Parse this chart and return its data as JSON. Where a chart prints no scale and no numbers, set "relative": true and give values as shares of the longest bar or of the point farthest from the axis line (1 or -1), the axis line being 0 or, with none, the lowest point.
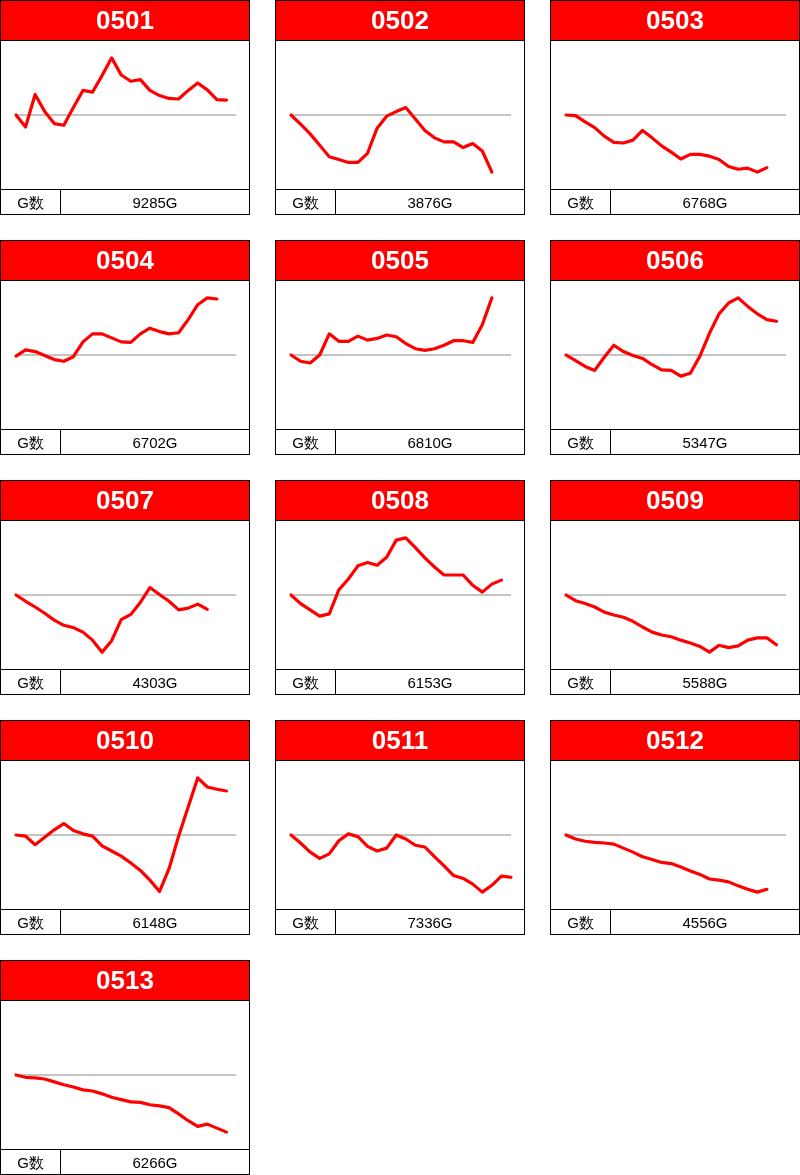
{
  "chart_data": [
    {
      "type": "line",
      "title": "0501",
      "relative": true,
      "categories": [
        null,
        null,
        null,
        null,
        null,
        null,
        null,
        null,
        null,
        null,
        null,
        null,
        null,
        null,
        null,
        null,
        null,
        null,
        null,
        null,
        null,
        null,
        null,
        null
      ],
      "series": [
        {
          "color": "#ff0000",
          "values": [
            0,
            -0.21,
            0.36,
            0.06,
            -0.15,
            -0.18,
            0.13,
            0.43,
            0.4,
            0.69,
            1,
            0.7,
            0.59,
            0.62,
            0.43,
            0.34,
            0.29,
            0.28,
            0.43,
            0.56,
            0.44,
            0.27,
            0.26,
            null
          ]
        }
      ],
      "annotations": [
        "G数",
        "9285G"
      ]
    },
    {
      "type": "line",
      "title": "0502",
      "relative": true,
      "categories": [
        null,
        null,
        null,
        null,
        null,
        null,
        null,
        null,
        null,
        null,
        null,
        null,
        null,
        null,
        null,
        null,
        null,
        null,
        null,
        null,
        null,
        null,
        null,
        null
      ],
      "series": [
        {
          "color": "#ff0000",
          "values": [
            0,
            -0.16,
            -0.33,
            -0.53,
            -0.73,
            -0.78,
            -0.83,
            -0.83,
            -0.67,
            -0.23,
            -0.02,
            0.06,
            0.13,
            -0.07,
            -0.27,
            -0.4,
            -0.47,
            -0.47,
            -0.57,
            -0.5,
            -0.63,
            -1,
            null,
            null
          ]
        }
      ],
      "annotations": [
        "G数",
        "3876G"
      ]
    },
    {
      "type": "line",
      "title": "0503",
      "relative": true,
      "categories": [
        null,
        null,
        null,
        null,
        null,
        null,
        null,
        null,
        null,
        null,
        null,
        null,
        null,
        null,
        null,
        null,
        null,
        null,
        null,
        null,
        null,
        null,
        null,
        null
      ],
      "series": [
        {
          "color": "#ff0000",
          "values": [
            0,
            -0.01,
            -0.12,
            -0.22,
            -0.37,
            -0.48,
            -0.49,
            -0.44,
            -0.27,
            -0.4,
            -0.54,
            -0.65,
            -0.77,
            -0.69,
            -0.69,
            -0.72,
            -0.78,
            -0.9,
            -0.95,
            -0.93,
            -1,
            -0.92,
            null,
            null
          ]
        }
      ],
      "annotations": [
        "G数",
        "6768G"
      ]
    },
    {
      "type": "line",
      "title": "0504",
      "relative": true,
      "categories": [
        null,
        null,
        null,
        null,
        null,
        null,
        null,
        null,
        null,
        null,
        null,
        null,
        null,
        null,
        null,
        null,
        null,
        null,
        null,
        null,
        null,
        null,
        null,
        null
      ],
      "series": [
        {
          "color": "#ff0000",
          "values": [
            -0.02,
            0.09,
            0.06,
            -0.01,
            -0.08,
            -0.11,
            -0.03,
            0.23,
            0.37,
            0.37,
            0.3,
            0.23,
            0.22,
            0.37,
            0.47,
            0.41,
            0.37,
            0.39,
            0.62,
            0.88,
            1,
            0.98,
            null,
            null
          ]
        }
      ],
      "annotations": [
        "G数",
        "6702G"
      ]
    },
    {
      "type": "line",
      "title": "0505",
      "relative": true,
      "categories": [
        null,
        null,
        null,
        null,
        null,
        null,
        null,
        null,
        null,
        null,
        null,
        null,
        null,
        null,
        null,
        null,
        null,
        null,
        null,
        null,
        null,
        null,
        null,
        null
      ],
      "series": [
        {
          "color": "#ff0000",
          "values": [
            0,
            -0.11,
            -0.14,
            0,
            0.37,
            0.24,
            0.24,
            0.33,
            0.26,
            0.29,
            0.35,
            0.32,
            0.2,
            0.11,
            0.08,
            0.11,
            0.17,
            0.25,
            0.25,
            0.22,
            0.53,
            1,
            null,
            null
          ]
        }
      ],
      "annotations": [
        "G数",
        "6810G"
      ]
    },
    {
      "type": "line",
      "title": "0506",
      "relative": true,
      "categories": [
        null,
        null,
        null,
        null,
        null,
        null,
        null,
        null,
        null,
        null,
        null,
        null,
        null,
        null,
        null,
        null,
        null,
        null,
        null,
        null,
        null,
        null,
        null,
        null
      ],
      "series": [
        {
          "color": "#ff0000",
          "values": [
            0,
            -0.1,
            -0.2,
            -0.27,
            -0.04,
            0.17,
            0.06,
            -0.01,
            -0.06,
            -0.17,
            -0.26,
            -0.27,
            -0.37,
            -0.32,
            -0.02,
            0.38,
            0.72,
            0.91,
            1,
            0.85,
            0.72,
            0.62,
            0.59,
            null
          ]
        }
      ],
      "annotations": [
        "G数",
        "5347G"
      ]
    },
    {
      "type": "line",
      "title": "0507",
      "relative": true,
      "categories": [
        null,
        null,
        null,
        null,
        null,
        null,
        null,
        null,
        null,
        null,
        null,
        null,
        null,
        null,
        null,
        null,
        null,
        null,
        null,
        null,
        null,
        null,
        null,
        null
      ],
      "series": [
        {
          "color": "#ff0000",
          "values": [
            0,
            -0.11,
            -0.21,
            -0.32,
            -0.44,
            -0.53,
            -0.57,
            -0.65,
            -0.79,
            -1,
            -0.8,
            -0.43,
            -0.34,
            -0.13,
            0.13,
            0.01,
            -0.11,
            -0.26,
            -0.23,
            -0.16,
            -0.25,
            null,
            null,
            null
          ]
        }
      ],
      "annotations": [
        "G数",
        "4303G"
      ]
    },
    {
      "type": "line",
      "title": "0508",
      "relative": true,
      "categories": [
        null,
        null,
        null,
        null,
        null,
        null,
        null,
        null,
        null,
        null,
        null,
        null,
        null,
        null,
        null,
        null,
        null,
        null,
        null,
        null,
        null,
        null,
        null,
        null
      ],
      "series": [
        {
          "color": "#ff0000",
          "values": [
            0,
            -0.15,
            -0.26,
            -0.37,
            -0.33,
            0.09,
            0.28,
            0.51,
            0.57,
            0.52,
            0.66,
            0.96,
            1,
            0.83,
            0.65,
            0.49,
            0.35,
            0.35,
            0.35,
            0.17,
            0.05,
            0.19,
            0.26,
            null
          ]
        }
      ],
      "annotations": [
        "G数",
        "6153G"
      ]
    },
    {
      "type": "line",
      "title": "0509",
      "relative": true,
      "categories": [
        null,
        null,
        null,
        null,
        null,
        null,
        null,
        null,
        null,
        null,
        null,
        null,
        null,
        null,
        null,
        null,
        null,
        null,
        null,
        null,
        null,
        null,
        null,
        null
      ],
      "series": [
        {
          "color": "#ff0000",
          "values": [
            0,
            -0.1,
            -0.15,
            -0.21,
            -0.3,
            -0.35,
            -0.39,
            -0.46,
            -0.56,
            -0.65,
            -0.7,
            -0.73,
            -0.79,
            -0.84,
            -0.9,
            -1,
            -0.88,
            -0.92,
            -0.89,
            -0.79,
            -0.75,
            -0.75,
            -0.87,
            null
          ]
        }
      ],
      "annotations": [
        "G数",
        "5588G"
      ]
    },
    {
      "type": "line",
      "title": "0510",
      "relative": true,
      "categories": [
        null,
        null,
        null,
        null,
        null,
        null,
        null,
        null,
        null,
        null,
        null,
        null,
        null,
        null,
        null,
        null,
        null,
        null,
        null,
        null,
        null,
        null,
        null,
        null
      ],
      "series": [
        {
          "color": "#ff0000",
          "values": [
            0,
            -0.02,
            -0.17,
            -0.04,
            0.09,
            0.2,
            0.08,
            0.02,
            -0.02,
            -0.19,
            -0.28,
            -0.37,
            -0.49,
            -0.62,
            -0.79,
            -0.99,
            -0.59,
            -0.02,
            0.49,
            1,
            0.84,
            0.8,
            0.77,
            null
          ]
        }
      ],
      "annotations": [
        "G数",
        "6148G"
      ]
    },
    {
      "type": "line",
      "title": "0511",
      "relative": true,
      "categories": [
        null,
        null,
        null,
        null,
        null,
        null,
        null,
        null,
        null,
        null,
        null,
        null,
        null,
        null,
        null,
        null,
        null,
        null,
        null,
        null,
        null,
        null,
        null,
        null
      ],
      "series": [
        {
          "color": "#ff0000",
          "values": [
            0,
            -0.14,
            -0.3,
            -0.41,
            -0.33,
            -0.1,
            0.02,
            -0.03,
            -0.2,
            -0.28,
            -0.23,
            0,
            -0.07,
            -0.18,
            -0.21,
            -0.38,
            -0.54,
            -0.71,
            -0.76,
            -0.86,
            -1,
            -0.88,
            -0.72,
            -0.74
          ]
        }
      ],
      "annotations": [
        "G数",
        "7336G"
      ]
    },
    {
      "type": "line",
      "title": "0512",
      "relative": true,
      "categories": [
        null,
        null,
        null,
        null,
        null,
        null,
        null,
        null,
        null,
        null,
        null,
        null,
        null,
        null,
        null,
        null,
        null,
        null,
        null,
        null,
        null,
        null,
        null,
        null
      ],
      "series": [
        {
          "color": "#ff0000",
          "values": [
            0,
            -0.07,
            -0.11,
            -0.13,
            -0.14,
            -0.16,
            -0.23,
            -0.3,
            -0.38,
            -0.43,
            -0.48,
            -0.5,
            -0.56,
            -0.63,
            -0.69,
            -0.77,
            -0.79,
            -0.82,
            -0.89,
            -0.95,
            -1,
            -0.95,
            null,
            null
          ]
        }
      ],
      "annotations": [
        "G数",
        "4556G"
      ]
    },
    {
      "type": "line",
      "title": "0513",
      "relative": true,
      "categories": [
        null,
        null,
        null,
        null,
        null,
        null,
        null,
        null,
        null,
        null,
        null,
        null,
        null,
        null,
        null,
        null,
        null,
        null,
        null,
        null,
        null,
        null,
        null,
        null
      ],
      "series": [
        {
          "color": "#ff0000",
          "values": [
            0,
            -0.04,
            -0.05,
            -0.07,
            -0.12,
            -0.17,
            -0.21,
            -0.26,
            -0.28,
            -0.33,
            -0.39,
            -0.43,
            -0.47,
            -0.48,
            -0.52,
            -0.54,
            -0.57,
            -0.68,
            -0.8,
            -0.9,
            -0.86,
            -0.93,
            -1,
            null
          ]
        }
      ],
      "annotations": [
        "G数",
        "6266G"
      ]
    }
  ]
}
